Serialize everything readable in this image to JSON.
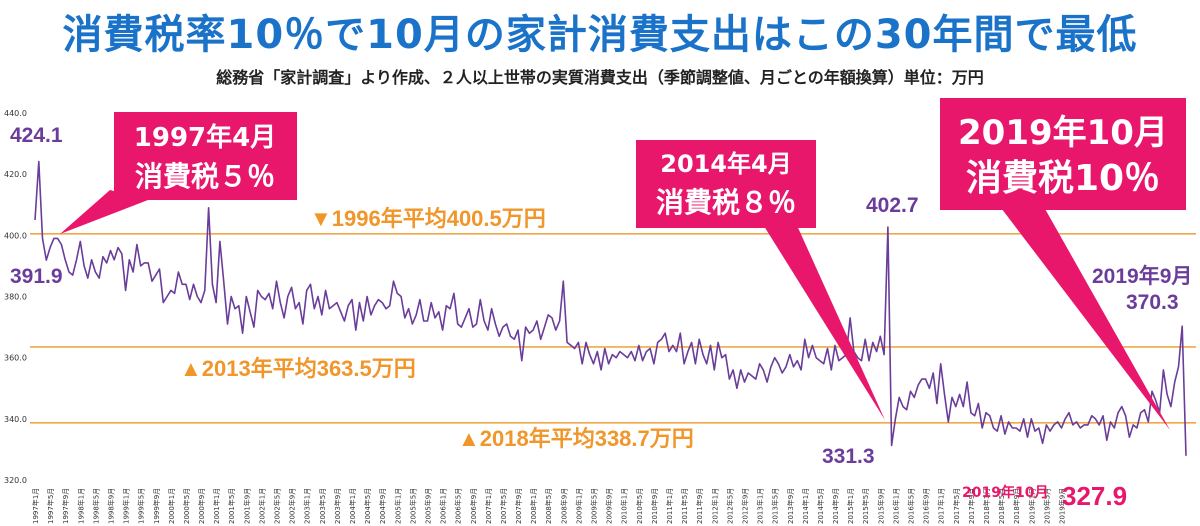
{
  "title": "消費税率10％で10月の家計消費支出はこの30年間で最低",
  "subtitle": "総務省「家計調査」より作成、２人以上世帯の実質消費支出（季節調整値、月ごとの年額換算）単位：万円",
  "colors": {
    "line": "#6a3d9a",
    "avg_line": "#f0a84a",
    "avg_text": "#f0962a",
    "callout": "#e8176c",
    "title": "#1a73c9"
  },
  "chart_data": {
    "type": "line",
    "x_start": "1997年1月",
    "x_end": "2019年10月",
    "x_tick_labels": [
      "1997年1月",
      "1997年5月",
      "1997年9月",
      "1998年1月",
      "1998年5月",
      "1998年9月",
      "1999年1月",
      "1999年5月",
      "1999年9月",
      "2000年1月",
      "2000年5月",
      "2000年9月",
      "2001年1月",
      "2001年5月",
      "2001年9月",
      "2002年1月",
      "2002年5月",
      "2002年9月",
      "2003年1月",
      "2003年5月",
      "2003年9月",
      "2004年1月",
      "2004年5月",
      "2004年9月",
      "2005年1月",
      "2005年5月",
      "2005年9月",
      "2006年1月",
      "2006年5月",
      "2006年9月",
      "2007年1月",
      "2007年5月",
      "2007年9月",
      "2008年1月",
      "2008年5月",
      "2008年9月",
      "2009年1月",
      "2009年5月",
      "2009年9月",
      "2010年1月",
      "2010年5月",
      "2010年9月",
      "2011年1月",
      "2011年5月",
      "2011年9月",
      "2012年1月",
      "2012年5月",
      "2012年9月",
      "2013年1月",
      "2013年5月",
      "2013年9月",
      "2014年1月",
      "2014年5月",
      "2014年9月",
      "2015年1月",
      "2015年5月",
      "2015年9月",
      "2016年1月",
      "2016年5月",
      "2016年9月",
      "2017年1月",
      "2017年5月",
      "2017年9月",
      "2018年1月",
      "2018年5月",
      "2018年9月",
      "2019年1月",
      "2019年5月",
      "2019年9月"
    ],
    "y_ticks": [
      "320.0",
      "340.0",
      "360.0",
      "380.0",
      "400.0",
      "420.0",
      "440.0"
    ],
    "ylim": [
      320,
      440
    ],
    "series": [
      {
        "values": [
          405,
          424.1,
          399,
          391.9,
          396,
          399,
          399,
          397,
          392,
          388,
          387,
          392,
          398,
          390,
          386,
          392,
          388,
          386,
          393,
          391,
          395,
          392,
          396,
          394,
          382,
          392,
          388,
          397,
          390,
          391,
          391,
          385,
          387,
          389,
          378,
          380,
          382,
          381,
          388,
          384,
          384,
          379,
          384,
          380,
          378,
          382,
          409,
          384,
          378,
          398,
          385,
          371,
          380,
          376,
          377,
          368,
          380,
          375,
          370,
          382,
          380,
          379,
          381,
          376,
          385,
          378,
          373,
          380,
          383,
          376,
          378,
          371,
          382,
          384,
          376,
          380,
          374,
          382,
          376,
          377,
          378,
          375,
          372,
          377,
          379,
          369,
          378,
          372,
          380,
          374,
          377,
          379,
          378,
          376,
          377,
          385,
          381,
          380,
          373,
          376,
          371,
          374,
          379,
          372,
          372,
          378,
          373,
          375,
          369,
          377,
          376,
          381,
          371,
          370,
          373,
          376,
          370,
          371,
          379,
          372,
          369,
          376,
          371,
          367,
          370,
          371,
          367,
          366,
          369,
          359,
          370,
          368,
          369,
          372,
          366,
          370,
          374,
          373,
          369,
          372,
          385,
          365,
          364,
          363,
          365,
          358,
          365,
          361,
          358,
          362,
          356,
          363,
          358,
          361,
          360,
          362,
          361,
          360,
          362,
          359,
          364,
          359,
          362,
          363,
          358,
          365,
          366,
          368,
          362,
          364,
          362,
          368,
          358,
          362,
          365,
          358,
          366,
          361,
          358,
          364,
          356,
          365,
          360,
          361,
          353,
          356,
          350,
          356,
          352,
          355,
          354,
          353,
          358,
          356,
          352,
          357,
          360,
          358,
          355,
          357,
          361,
          357,
          359,
          356,
          366,
          360,
          364,
          360,
          359,
          358,
          363,
          356,
          364,
          359,
          360,
          361,
          373,
          362,
          360,
          359,
          366,
          359,
          365,
          362,
          367,
          361,
          402.7,
          331.3,
          340,
          347,
          344,
          343,
          349,
          347,
          351,
          353,
          353,
          350,
          355,
          345,
          358,
          348,
          339,
          347,
          344,
          348,
          344,
          352,
          342,
          341,
          345,
          337,
          342,
          341,
          337,
          336,
          341,
          335,
          339,
          337,
          337,
          336,
          340,
          334,
          340,
          336,
          337,
          332,
          338,
          336,
          338,
          339,
          337,
          340,
          342,
          338,
          339,
          337,
          338,
          338,
          341,
          340,
          338,
          341,
          333,
          339,
          337,
          342,
          344,
          341,
          334,
          338,
          337,
          342,
          343,
          339,
          349,
          346,
          342,
          356,
          348,
          344,
          352,
          357,
          370.3,
          327.9
        ]
      }
    ]
  },
  "averages": [
    {
      "label": "▼1996年平均400.5万円",
      "value": 400.5
    },
    {
      "label": "▲2013年平均363.5万円",
      "value": 363.5
    },
    {
      "label": "▲2018年平均338.7万円",
      "value": 338.7
    }
  ],
  "value_labels": {
    "peak_1997": "424.1",
    "low_1997": "391.9",
    "peak_2014": "402.7",
    "low_2014": "331.3",
    "sep_2019_date": "2019年9月",
    "sep_2019_value": "370.3",
    "oct_2019_date": "2019年10月",
    "oct_2019_value": "327.9"
  },
  "callouts": {
    "c1997": {
      "line1": "1997年4月",
      "line2": "消費税５％"
    },
    "c2014": {
      "line1": "2014年4月",
      "line2": "消費税８％"
    },
    "c2019": {
      "line1": "2019年10月",
      "line2": "消費税10％"
    }
  }
}
